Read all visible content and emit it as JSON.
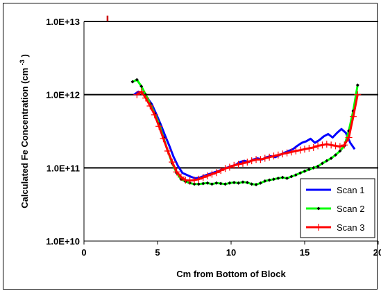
{
  "chart_data": {
    "type": "line",
    "title": "",
    "xlabel": "Cm from Bottom of Block",
    "ylabel": "Calculated Fe Concentration (cm",
    "ylabel_superscript": "-3",
    "ylabel_close": ")",
    "xlim": [
      0,
      20
    ],
    "ylim": [
      10000000000.0,
      10000000000000.0
    ],
    "y_scale": "log",
    "x_ticks": [
      {
        "value": 0,
        "label": "0"
      },
      {
        "value": 5,
        "label": "5"
      },
      {
        "value": 10,
        "label": "10"
      },
      {
        "value": 15,
        "label": "15"
      },
      {
        "value": 20,
        "label": "20"
      }
    ],
    "y_ticks": [
      {
        "value": 10000000000.0,
        "label": "1.0E+10"
      },
      {
        "value": 100000000000.0,
        "label": "1.0E+11"
      },
      {
        "value": 1000000000000.0,
        "label": "1.0E+12"
      },
      {
        "value": 10000000000000.0,
        "label": "1.0E+13"
      }
    ],
    "grid": "horizontal major lines",
    "legend_position": "bottom-right",
    "series": [
      {
        "name": "Scan 1",
        "color": "#0000ff",
        "marker": "none",
        "x": [
          3.4,
          3.7,
          4.0,
          4.3,
          4.6,
          4.9,
          5.2,
          5.5,
          5.8,
          6.1,
          6.4,
          6.7,
          7.0,
          7.3,
          7.6,
          7.9,
          8.2,
          8.5,
          8.8,
          9.1,
          9.4,
          9.7,
          10.0,
          10.3,
          10.6,
          10.9,
          11.2,
          11.5,
          11.8,
          12.1,
          12.4,
          12.7,
          13.0,
          13.3,
          13.6,
          13.9,
          14.2,
          14.5,
          14.8,
          15.1,
          15.4,
          15.7,
          16.0,
          16.3,
          16.6,
          16.9,
          17.2,
          17.5,
          17.8,
          18.1,
          18.4
        ],
        "y": [
          1000000000000.0,
          1100000000000.0,
          1050000000000.0,
          900000000000.0,
          750000000000.0,
          550000000000.0,
          400000000000.0,
          280000000000.0,
          200000000000.0,
          140000000000.0,
          105000000000.0,
          85000000000.0,
          80000000000.0,
          75000000000.0,
          72000000000.0,
          74000000000.0,
          78000000000.0,
          82000000000.0,
          86000000000.0,
          90000000000.0,
          95000000000.0,
          100000000000.0,
          105000000000.0,
          110000000000.0,
          120000000000.0,
          125000000000.0,
          120000000000.0,
          130000000000.0,
          135000000000.0,
          130000000000.0,
          140000000000.0,
          145000000000.0,
          140000000000.0,
          150000000000.0,
          160000000000.0,
          170000000000.0,
          180000000000.0,
          200000000000.0,
          220000000000.0,
          230000000000.0,
          250000000000.0,
          220000000000.0,
          240000000000.0,
          270000000000.0,
          290000000000.0,
          260000000000.0,
          300000000000.0,
          340000000000.0,
          300000000000.0,
          220000000000.0,
          180000000000.0
        ]
      },
      {
        "name": "Scan 2",
        "color": "#00ff00",
        "marker": "diamond",
        "marker_color": "#000000",
        "x": [
          3.3,
          3.6,
          3.9,
          4.2,
          4.5,
          4.8,
          5.1,
          5.4,
          5.7,
          6.0,
          6.3,
          6.6,
          6.9,
          7.2,
          7.5,
          7.8,
          8.1,
          8.4,
          8.7,
          9.0,
          9.3,
          9.6,
          9.9,
          10.2,
          10.5,
          10.8,
          11.1,
          11.4,
          11.7,
          12.0,
          12.3,
          12.6,
          12.9,
          13.2,
          13.5,
          13.8,
          14.1,
          14.4,
          14.7,
          15.0,
          15.3,
          15.6,
          15.9,
          16.2,
          16.5,
          16.8,
          17.1,
          17.4,
          17.7,
          18.0,
          18.3,
          18.6
        ],
        "y": [
          1500000000000.0,
          1600000000000.0,
          1300000000000.0,
          1000000000000.0,
          750000000000.0,
          550000000000.0,
          400000000000.0,
          260000000000.0,
          170000000000.0,
          115000000000.0,
          85000000000.0,
          70000000000.0,
          65000000000.0,
          62000000000.0,
          60000000000.0,
          60000000000.0,
          61000000000.0,
          62000000000.0,
          60000000000.0,
          62000000000.0,
          61000000000.0,
          60000000000.0,
          62000000000.0,
          63000000000.0,
          62000000000.0,
          64000000000.0,
          63000000000.0,
          60000000000.0,
          59000000000.0,
          62000000000.0,
          66000000000.0,
          68000000000.0,
          70000000000.0,
          72000000000.0,
          74000000000.0,
          72000000000.0,
          76000000000.0,
          80000000000.0,
          85000000000.0,
          90000000000.0,
          95000000000.0,
          100000000000.0,
          105000000000.0,
          115000000000.0,
          125000000000.0,
          135000000000.0,
          150000000000.0,
          170000000000.0,
          200000000000.0,
          320000000000.0,
          600000000000.0,
          1350000000000.0
        ]
      },
      {
        "name": "Scan 3",
        "color": "#ff0000",
        "marker": "plus",
        "x": [
          3.6,
          3.9,
          4.2,
          4.5,
          4.8,
          5.1,
          5.4,
          5.7,
          6.0,
          6.3,
          6.6,
          6.9,
          7.2,
          7.5,
          7.8,
          8.1,
          8.4,
          8.7,
          9.0,
          9.3,
          9.6,
          9.9,
          10.2,
          10.5,
          10.8,
          11.1,
          11.4,
          11.7,
          12.0,
          12.3,
          12.6,
          12.9,
          13.2,
          13.5,
          13.8,
          14.1,
          14.4,
          14.7,
          15.0,
          15.3,
          15.6,
          15.9,
          16.2,
          16.5,
          16.8,
          17.1,
          17.4,
          17.7,
          18.0,
          18.3,
          18.6
        ],
        "y": [
          1000000000000.0,
          1100000000000.0,
          900000000000.0,
          700000000000.0,
          530000000000.0,
          370000000000.0,
          250000000000.0,
          170000000000.0,
          120000000000.0,
          88000000000.0,
          75000000000.0,
          68000000000.0,
          67000000000.0,
          68000000000.0,
          70000000000.0,
          74000000000.0,
          78000000000.0,
          82000000000.0,
          86000000000.0,
          92000000000.0,
          98000000000.0,
          102000000000.0,
          108000000000.0,
          112000000000.0,
          115000000000.0,
          120000000000.0,
          125000000000.0,
          130000000000.0,
          130000000000.0,
          135000000000.0,
          140000000000.0,
          145000000000.0,
          150000000000.0,
          155000000000.0,
          160000000000.0,
          165000000000.0,
          170000000000.0,
          175000000000.0,
          180000000000.0,
          185000000000.0,
          190000000000.0,
          200000000000.0,
          205000000000.0,
          210000000000.0,
          205000000000.0,
          200000000000.0,
          195000000000.0,
          205000000000.0,
          260000000000.0,
          500000000000.0,
          1000000000000.0
        ]
      }
    ],
    "annotations": [
      {
        "x": 1.6,
        "y": 11000000000000.0,
        "color": "#cc0000",
        "mark": "small red tick"
      }
    ]
  }
}
